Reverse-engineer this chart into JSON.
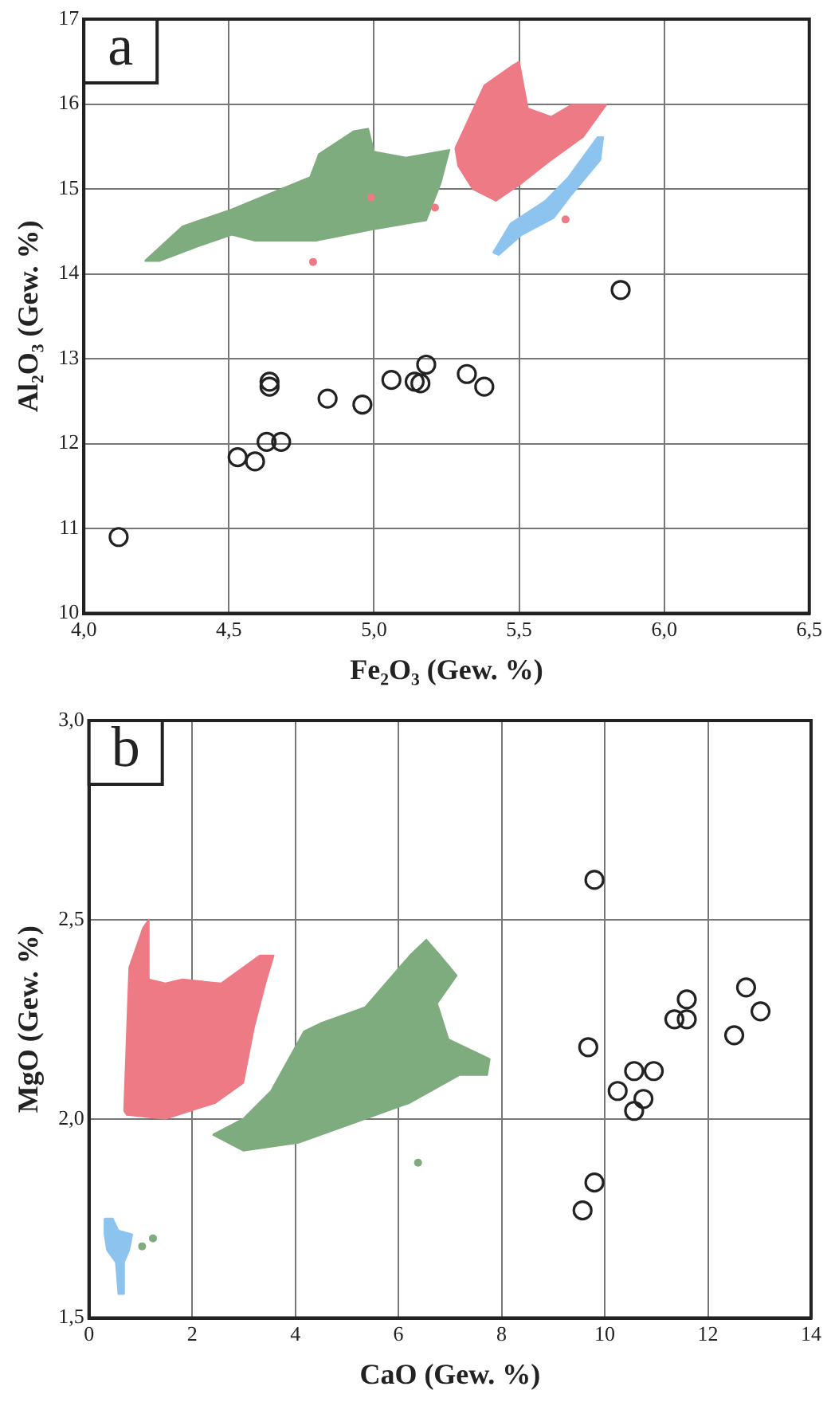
{
  "chart_data": [
    {
      "type": "scatter",
      "annotations": [
        "a"
      ],
      "xlabel": "Fe₂O₃ (Gew. %)",
      "ylabel": "Al₂O₃ (Gew. %)",
      "xlim": [
        4,
        6.5
      ],
      "ylim": [
        10,
        17
      ],
      "xticks": [
        {
          "value": 4,
          "label": "4,0"
        },
        {
          "value": 4.5,
          "label": "4,5"
        },
        {
          "value": 5,
          "label": "5,0"
        },
        {
          "value": 5.5,
          "label": "5,5"
        },
        {
          "value": 6,
          "label": "6,0"
        },
        {
          "value": 6.5,
          "label": "6,5"
        }
      ],
      "yticks": [
        10,
        11,
        12,
        13,
        14,
        15,
        16,
        17
      ],
      "grid": true,
      "legend": false,
      "marker": "circle",
      "series": [
        {
          "type": "area",
          "marker": "none",
          "color": "#7fac7f",
          "x": [
            4.21,
            4.34,
            4.51,
            4.78,
            4.81,
            4.93,
            4.98,
            5.0,
            5.11,
            5.26,
            5.23,
            5.18,
            4.99,
            4.8,
            4.59,
            4.51,
            4.39,
            4.26
          ],
          "values": [
            14.15,
            14.56,
            14.76,
            15.14,
            15.41,
            15.68,
            15.71,
            15.44,
            15.37,
            15.46,
            15.07,
            14.63,
            14.52,
            14.39,
            14.39,
            14.46,
            14.32,
            14.15
          ]
        },
        {
          "type": "area",
          "marker": "none",
          "color": "#ee7a86",
          "x": [
            5.28,
            5.38,
            5.48,
            5.5,
            5.53,
            5.61,
            5.68,
            5.8,
            5.72,
            5.61,
            5.51,
            5.42,
            5.34,
            5.29
          ],
          "values": [
            15.48,
            16.22,
            16.46,
            16.5,
            15.95,
            15.85,
            15.99,
            15.99,
            15.61,
            15.34,
            15.07,
            14.86,
            15.0,
            15.27
          ]
        },
        {
          "type": "area",
          "marker": "none",
          "color": "#8cc4ef",
          "x": [
            5.41,
            5.47,
            5.59,
            5.67,
            5.77,
            5.79,
            5.78,
            5.68,
            5.62,
            5.51,
            5.43
          ],
          "values": [
            14.25,
            14.59,
            14.86,
            15.14,
            15.61,
            15.61,
            15.34,
            14.93,
            14.66,
            14.46,
            14.22
          ]
        },
        {
          "type": "scatter",
          "color": "#ee7a86",
          "x": [
            4.99,
            5.21,
            4.79,
            5.66
          ],
          "values": [
            14.9,
            14.78,
            14.14,
            14.64
          ]
        },
        {
          "type": "scatter",
          "color": "#222222",
          "x": [
            4.12,
            4.53,
            4.59,
            4.63,
            4.68,
            4.64,
            4.64,
            4.84,
            4.96,
            5.06,
            5.14,
            5.16,
            5.18,
            5.32,
            5.38,
            5.85
          ],
          "values": [
            10.9,
            11.84,
            11.79,
            12.02,
            12.02,
            12.73,
            12.67,
            12.53,
            12.46,
            12.75,
            12.73,
            12.71,
            12.93,
            12.82,
            12.67,
            13.81
          ]
        }
      ]
    },
    {
      "type": "scatter",
      "annotations": [
        "b"
      ],
      "xlabel": "CaO (Gew. %)",
      "ylabel": "MgO (Gew. %)",
      "xlim": [
        0,
        14
      ],
      "ylim": [
        1.5,
        3
      ],
      "xticks": [
        0,
        2,
        4,
        6,
        8,
        10,
        12,
        14
      ],
      "yticks": [
        {
          "value": 1.5,
          "label": "1,5"
        },
        {
          "value": 2,
          "label": "2,0"
        },
        {
          "value": 2.5,
          "label": "2,5"
        },
        {
          "value": 3,
          "label": "3,0"
        }
      ],
      "grid": true,
      "legend": false,
      "marker": "circle",
      "series": [
        {
          "type": "area",
          "marker": "none",
          "color": "#ee7a86",
          "x": [
            0.68,
            0.78,
            1.05,
            1.16,
            1.16,
            1.48,
            1.81,
            2.56,
            2.99,
            3.31,
            3.58,
            3.42,
            3.2,
            2.99,
            2.45,
            1.48,
            0.73
          ],
          "values": [
            2.02,
            2.38,
            2.48,
            2.5,
            2.35,
            2.34,
            2.35,
            2.34,
            2.38,
            2.41,
            2.41,
            2.34,
            2.23,
            2.09,
            2.04,
            2.0,
            2.01
          ]
        },
        {
          "type": "area",
          "marker": "none",
          "color": "#7fac7f",
          "x": [
            2.4,
            2.99,
            3.53,
            4.17,
            4.49,
            5.35,
            6.22,
            6.54,
            6.81,
            7.13,
            6.75,
            6.97,
            7.77,
            7.72,
            7.18,
            6.22,
            5.14,
            4.06,
            2.99
          ],
          "values": [
            1.96,
            2.0,
            2.07,
            2.22,
            2.24,
            2.28,
            2.41,
            2.45,
            2.41,
            2.36,
            2.29,
            2.2,
            2.15,
            2.11,
            2.11,
            2.04,
            1.99,
            1.94,
            1.92
          ]
        },
        {
          "type": "area",
          "marker": "none",
          "color": "#8cc4ef",
          "x": [
            0.3,
            0.46,
            0.57,
            0.84,
            0.78,
            0.68,
            0.68,
            0.57,
            0.52,
            0.35,
            0.3
          ],
          "values": [
            1.75,
            1.75,
            1.72,
            1.71,
            1.67,
            1.64,
            1.56,
            1.56,
            1.64,
            1.67,
            1.71
          ]
        },
        {
          "type": "scatter",
          "color": "#7fac7f",
          "x": [
            6.38,
            1.03,
            1.24
          ],
          "values": [
            1.89,
            1.68,
            1.7
          ]
        },
        {
          "type": "scatter",
          "color": "#222222",
          "x": [
            9.8,
            9.68,
            10.57,
            10.95,
            10.25,
            10.75,
            10.57,
            11.59,
            11.35,
            11.59,
            12.51,
            12.74,
            13.02,
            9.8,
            9.57
          ],
          "values": [
            2.6,
            2.18,
            2.12,
            2.12,
            2.07,
            2.05,
            2.02,
            2.3,
            2.25,
            2.25,
            2.21,
            2.33,
            2.27,
            1.84,
            1.77
          ]
        }
      ]
    }
  ]
}
